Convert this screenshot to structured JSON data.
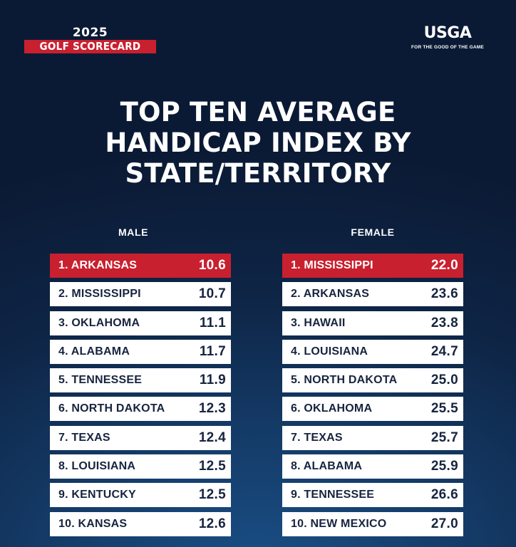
{
  "header": {
    "year": "2025",
    "label": "GOLF SCORECARD",
    "logo": "USGA",
    "tagline": "FOR THE GOOD OF THE GAME"
  },
  "title": [
    "TOP TEN AVERAGE",
    "HANDICAP INDEX BY",
    "STATE/TERRITORY"
  ],
  "male": {
    "heading": "MALE",
    "rows": [
      {
        "name": "1. ARKANSAS",
        "value": "10.6"
      },
      {
        "name": "2. MISSISSIPPI",
        "value": "10.7"
      },
      {
        "name": "3. OKLAHOMA",
        "value": "11.1"
      },
      {
        "name": "4. ALABAMA",
        "value": "11.7"
      },
      {
        "name": "5. TENNESSEE",
        "value": "11.9"
      },
      {
        "name": "6. NORTH DAKOTA",
        "value": "12.3"
      },
      {
        "name": "7. TEXAS",
        "value": "12.4"
      },
      {
        "name": "8. LOUISIANA",
        "value": "12.5"
      },
      {
        "name": "9. KENTUCKY",
        "value": "12.5"
      },
      {
        "name": "10. KANSAS",
        "value": "12.6"
      }
    ]
  },
  "female": {
    "heading": "FEMALE",
    "rows": [
      {
        "name": "1. MISSISSIPPI",
        "value": "22.0"
      },
      {
        "name": "2. ARKANSAS",
        "value": "23.6"
      },
      {
        "name": "3. HAWAII",
        "value": "23.8"
      },
      {
        "name": "4. LOUISIANA",
        "value": "24.7"
      },
      {
        "name": "5. NORTH DAKOTA",
        "value": "25.0"
      },
      {
        "name": "6. OKLAHOMA",
        "value": "25.5"
      },
      {
        "name": "7. TEXAS",
        "value": "25.7"
      },
      {
        "name": "8. ALABAMA",
        "value": "25.9"
      },
      {
        "name": "9. TENNESSEE",
        "value": "26.6"
      },
      {
        "name": "10. NEW MEXICO",
        "value": "27.0"
      }
    ]
  },
  "colors": {
    "accent_red": "#c8202f",
    "row_text": "#17243f",
    "background": "#0e2546"
  }
}
